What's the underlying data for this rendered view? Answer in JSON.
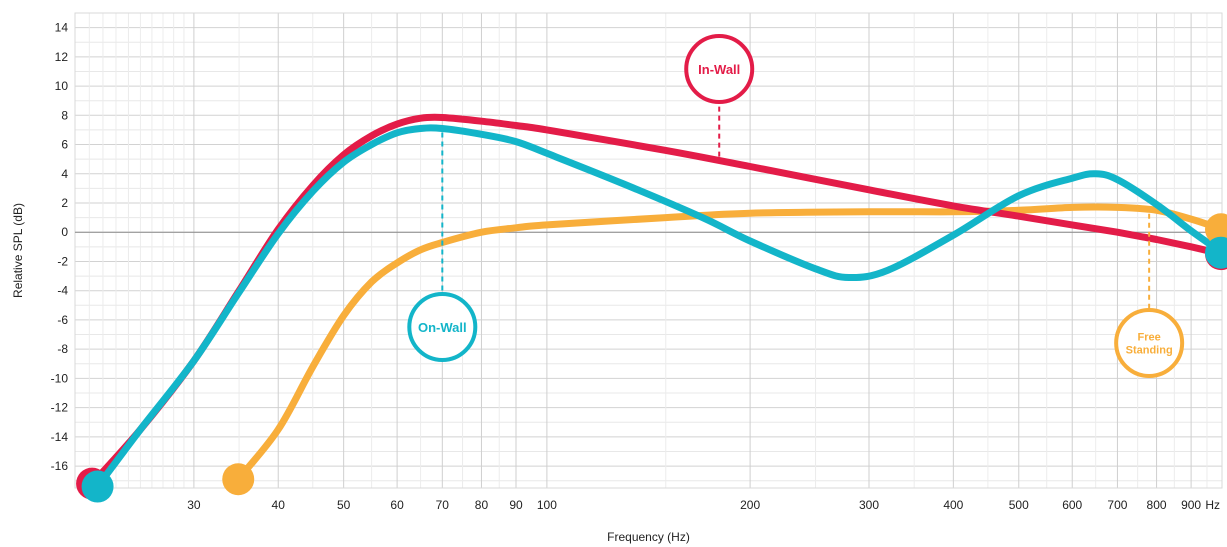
{
  "chart_data": {
    "type": "line",
    "title": "",
    "xlabel": "Frequency (Hz)",
    "ylabel": "Relative SPL (dB)",
    "xscale": "log",
    "xlim": [
      20,
      1000
    ],
    "ylim": [
      -17.5,
      15
    ],
    "grid": true,
    "x_ticks": [
      {
        "value": 30,
        "label": "30"
      },
      {
        "value": 40,
        "label": "40"
      },
      {
        "value": 50,
        "label": "50"
      },
      {
        "value": 60,
        "label": "60"
      },
      {
        "value": 70,
        "label": "70"
      },
      {
        "value": 80,
        "label": "80"
      },
      {
        "value": 90,
        "label": "90"
      },
      {
        "value": 100,
        "label": "100"
      },
      {
        "value": 200,
        "label": "200"
      },
      {
        "value": 300,
        "label": "300"
      },
      {
        "value": 400,
        "label": "400"
      },
      {
        "value": 500,
        "label": "500"
      },
      {
        "value": 600,
        "label": "600"
      },
      {
        "value": 700,
        "label": "700"
      },
      {
        "value": 800,
        "label": "800"
      },
      {
        "value": 900,
        "label": "900"
      },
      {
        "value": 1000,
        "label": "Hz"
      }
    ],
    "y_ticks": [
      {
        "value": 14,
        "label": "14"
      },
      {
        "value": 12,
        "label": "12"
      },
      {
        "value": 10,
        "label": "10"
      },
      {
        "value": 8,
        "label": "8"
      },
      {
        "value": 6,
        "label": "6"
      },
      {
        "value": 4,
        "label": "4"
      },
      {
        "value": 2,
        "label": "2"
      },
      {
        "value": 0,
        "label": "0"
      },
      {
        "value": -2,
        "label": "-2"
      },
      {
        "value": -4,
        "label": "-4"
      },
      {
        "value": -6,
        "label": "-6"
      },
      {
        "value": -8,
        "label": "-8"
      },
      {
        "value": -10,
        "label": "-10"
      },
      {
        "value": -12,
        "label": "-12"
      },
      {
        "value": -14,
        "label": "-14"
      },
      {
        "value": -16,
        "label": "-16"
      }
    ],
    "series": [
      {
        "name": "In-Wall",
        "color": "#e31c48",
        "x": [
          21.2,
          25,
          30,
          35,
          40,
          45,
          50,
          55,
          60,
          65,
          70,
          80,
          90,
          100,
          150,
          200,
          300,
          400,
          500,
          600,
          700,
          800,
          900,
          1000
        ],
        "y": [
          -17.2,
          -13.5,
          -8.8,
          -4,
          0.2,
          3.2,
          5.3,
          6.6,
          7.4,
          7.8,
          7.85,
          7.6,
          7.3,
          7.0,
          5.6,
          4.5,
          2.9,
          1.8,
          1.1,
          0.5,
          0,
          -0.5,
          -1,
          -1.5
        ]
      },
      {
        "name": "On-Wall",
        "color": "#13b5c9",
        "x": [
          21.6,
          25,
          30,
          35,
          40,
          45,
          50,
          55,
          60,
          65,
          70,
          80,
          90,
          100,
          130,
          170,
          200,
          250,
          280,
          320,
          400,
          500,
          600,
          650,
          700,
          800,
          900,
          1000
        ],
        "y": [
          -17.4,
          -13.5,
          -8.8,
          -4.1,
          -0.1,
          2.8,
          4.8,
          6.0,
          6.8,
          7.1,
          7.1,
          6.7,
          6.2,
          5.4,
          3.3,
          1.0,
          -0.6,
          -2.5,
          -3.1,
          -2.6,
          -0.2,
          2.5,
          3.7,
          4.0,
          3.6,
          1.9,
          0.1,
          -1.4
        ]
      },
      {
        "name": "Free Standing",
        "color": "#f8ae3b",
        "x": [
          34.9,
          40,
          45,
          50,
          55,
          60,
          65,
          70,
          80,
          90,
          100,
          150,
          200,
          300,
          400,
          500,
          600,
          700,
          800,
          900,
          1000
        ],
        "y": [
          -16.9,
          -13.5,
          -9.2,
          -5.7,
          -3.4,
          -2.1,
          -1.2,
          -0.7,
          0,
          0.3,
          0.5,
          1.0,
          1.3,
          1.4,
          1.4,
          1.5,
          1.7,
          1.7,
          1.5,
          0.9,
          0.2
        ]
      }
    ],
    "callouts": [
      {
        "text": [
          "In-Wall"
        ],
        "series": "In-Wall",
        "color": "#e31c48",
        "anchor_x": 180
      },
      {
        "text": [
          "On-Wall"
        ],
        "series": "On-Wall",
        "color": "#13b5c9",
        "anchor_x": 70
      },
      {
        "text": [
          "Free",
          "Standing"
        ],
        "series": "Free Standing",
        "color": "#f8ae3b",
        "anchor_x": 780
      }
    ]
  }
}
